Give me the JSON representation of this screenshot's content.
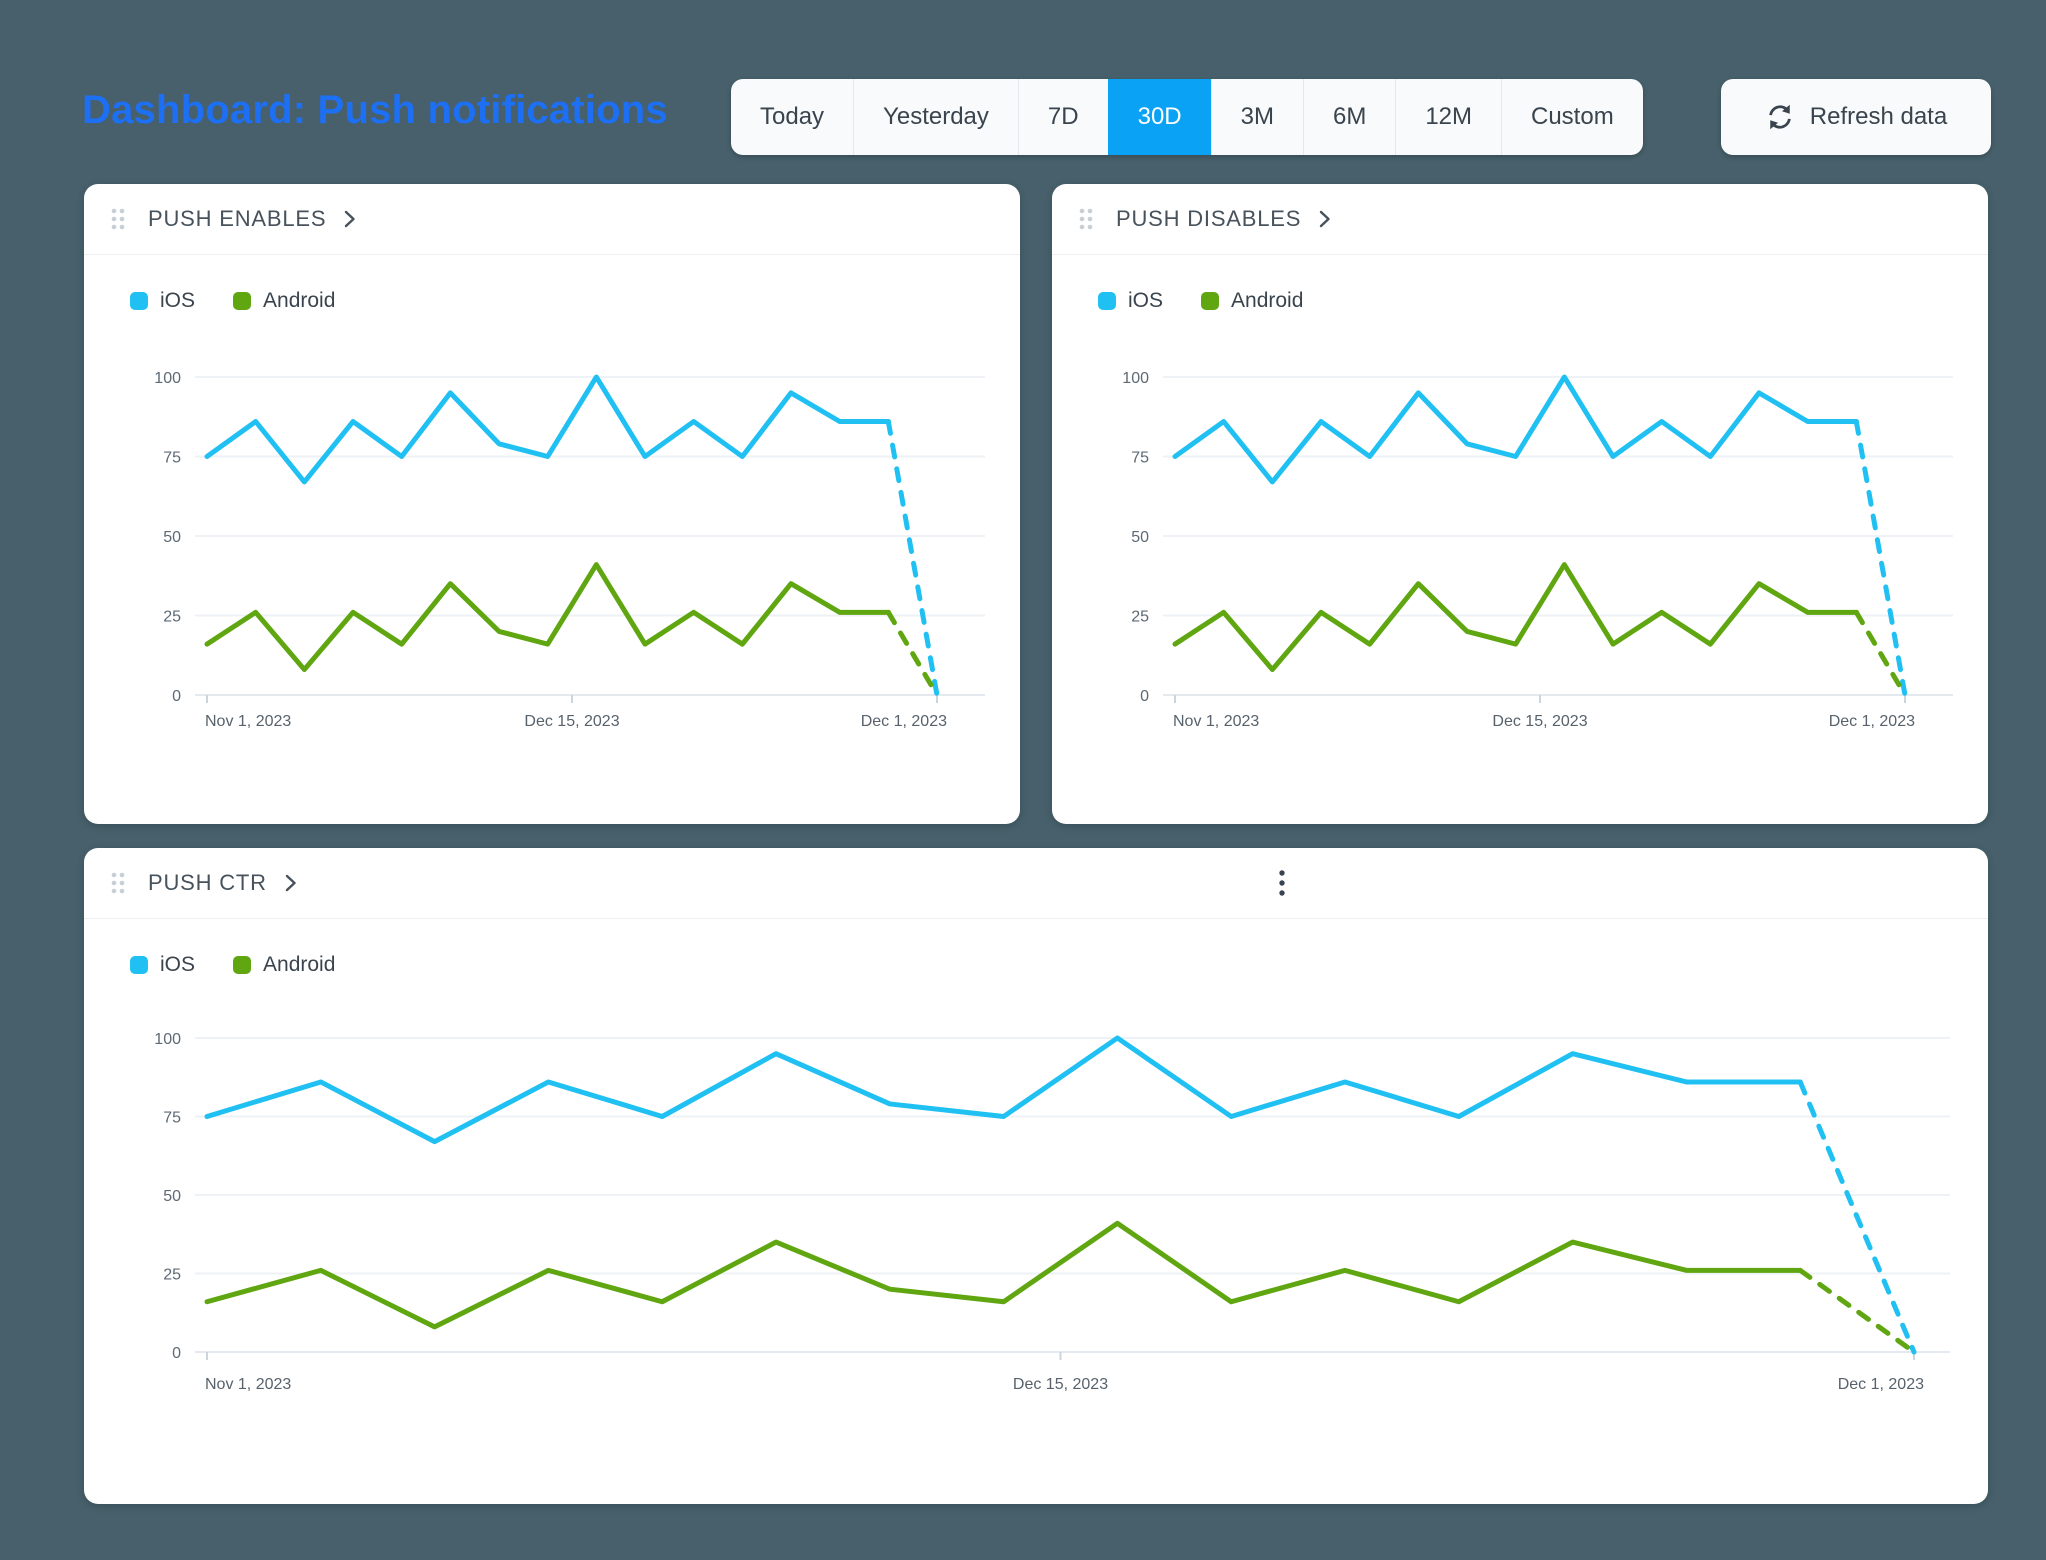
{
  "page_title": "Dashboard: Push notifications",
  "time_range": {
    "options": [
      "Today",
      "Yesterday",
      "7D",
      "30D",
      "3M",
      "6M",
      "12M",
      "Custom"
    ],
    "selected": "30D"
  },
  "refresh_button": {
    "label": "Refresh data"
  },
  "colors": {
    "background": "#47606b",
    "title_blue": "#1d6ff3",
    "selected_segment_blue": "#0aa2f4",
    "ios_line": "#20c0f3",
    "android_line": "#5fa611",
    "gridline": "#eef2f6",
    "zero_axis": "#e3e9ef",
    "tick": "#ccd5dc",
    "axis_text": "#5d6974",
    "card_text": "#47525c"
  },
  "cards": [
    {
      "title": "PUSH ENABLES",
      "has_menu": false
    },
    {
      "title": "PUSH DISABLES",
      "has_menu": false
    },
    {
      "title": "PUSH CTR",
      "has_menu": true
    }
  ],
  "chart_data": [
    {
      "type": "line",
      "title": "PUSH ENABLES",
      "x_tick_labels": [
        "Nov 1, 2023",
        "Dec 15, 2023",
        "Dec 1, 2023"
      ],
      "y_ticks": [
        0,
        25,
        50,
        75,
        100
      ],
      "ylim": [
        0,
        100
      ],
      "grid": "horizontal",
      "legend_position": "top-left",
      "legend": [
        "iOS",
        "Android"
      ],
      "series": [
        {
          "name": "iOS",
          "color": "#20c0f3",
          "values": [
            75,
            86,
            67,
            86,
            75,
            95,
            79,
            75,
            100,
            75,
            86,
            75,
            95,
            86,
            86,
            0
          ],
          "last_segment_dashed": true
        },
        {
          "name": "Android",
          "color": "#5fa611",
          "values": [
            16,
            26,
            8,
            26,
            16,
            35,
            20,
            16,
            41,
            16,
            26,
            16,
            35,
            26,
            26,
            0
          ],
          "last_segment_dashed": true
        }
      ]
    },
    {
      "type": "line",
      "title": "PUSH DISABLES",
      "x_tick_labels": [
        "Nov 1, 2023",
        "Dec 15, 2023",
        "Dec 1, 2023"
      ],
      "y_ticks": [
        0,
        25,
        50,
        75,
        100
      ],
      "ylim": [
        0,
        100
      ],
      "grid": "horizontal",
      "legend_position": "top-left",
      "legend": [
        "iOS",
        "Android"
      ],
      "series": [
        {
          "name": "iOS",
          "color": "#20c0f3",
          "values": [
            75,
            86,
            67,
            86,
            75,
            95,
            79,
            75,
            100,
            75,
            86,
            75,
            95,
            86,
            86,
            0
          ],
          "last_segment_dashed": true
        },
        {
          "name": "Android",
          "color": "#5fa611",
          "values": [
            16,
            26,
            8,
            26,
            16,
            35,
            20,
            16,
            41,
            16,
            26,
            16,
            35,
            26,
            26,
            0
          ],
          "last_segment_dashed": true
        }
      ]
    },
    {
      "type": "line",
      "title": "PUSH CTR",
      "x_tick_labels": [
        "Nov 1, 2023",
        "Dec 15, 2023",
        "Dec 1, 2023"
      ],
      "y_ticks": [
        0,
        25,
        50,
        75,
        100
      ],
      "ylim": [
        0,
        100
      ],
      "grid": "horizontal",
      "legend_position": "top-left",
      "legend": [
        "iOS",
        "Android"
      ],
      "series": [
        {
          "name": "iOS",
          "color": "#20c0f3",
          "values": [
            75,
            86,
            67,
            86,
            75,
            95,
            79,
            75,
            100,
            75,
            86,
            75,
            95,
            86,
            86,
            0
          ],
          "last_segment_dashed": true
        },
        {
          "name": "Android",
          "color": "#5fa611",
          "values": [
            16,
            26,
            8,
            26,
            16,
            35,
            20,
            16,
            41,
            16,
            26,
            16,
            35,
            26,
            26,
            0
          ],
          "last_segment_dashed": true
        }
      ]
    }
  ]
}
